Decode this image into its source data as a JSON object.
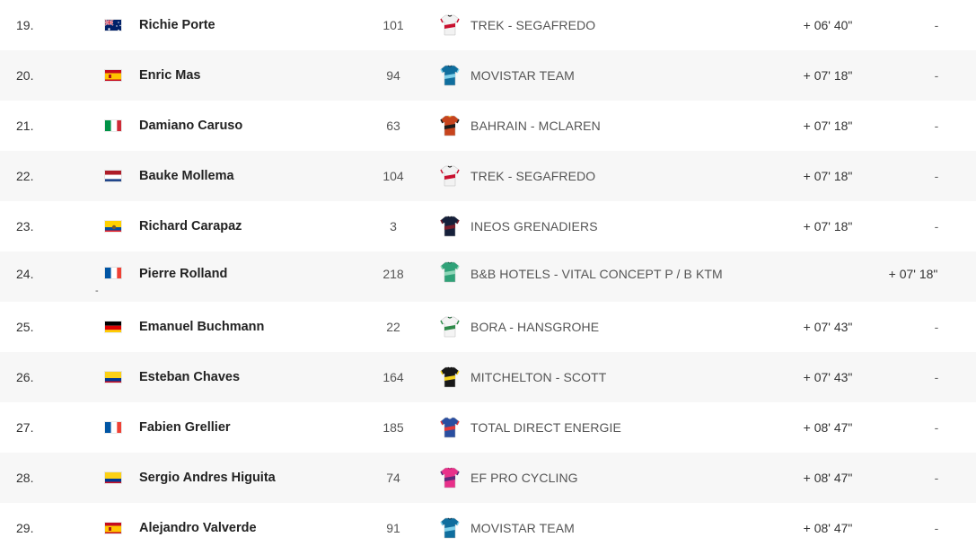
{
  "rows": [
    {
      "rank": "19.",
      "rider": "Richie Porte",
      "bib": "101",
      "team": "TREK - SEGAFREDO",
      "time": "+ 06' 40\"",
      "gap": "-",
      "flag": "australia",
      "jersey": "trek",
      "alt": false
    },
    {
      "rank": "20.",
      "rider": "Enric Mas",
      "bib": "94",
      "team": "MOVISTAR TEAM",
      "time": "+ 07' 18\"",
      "gap": "-",
      "flag": "spain",
      "jersey": "movistar",
      "alt": true
    },
    {
      "rank": "21.",
      "rider": "Damiano Caruso",
      "bib": "63",
      "team": "BAHRAIN - MCLAREN",
      "time": "+ 07' 18\"",
      "gap": "-",
      "flag": "italy",
      "jersey": "bahrain",
      "alt": false
    },
    {
      "rank": "22.",
      "rider": "Bauke Mollema",
      "bib": "104",
      "team": "TREK - SEGAFREDO",
      "time": "+ 07' 18\"",
      "gap": "-",
      "flag": "netherlands",
      "jersey": "trek",
      "alt": true
    },
    {
      "rank": "23.",
      "rider": "Richard Carapaz",
      "bib": "3",
      "team": "INEOS GRENADIERS",
      "time": "+ 07' 18\"",
      "gap": "-",
      "flag": "ecuador",
      "jersey": "ineos",
      "alt": false
    },
    {
      "rank": "24.",
      "rider": "Pierre Rolland",
      "bib": "218",
      "team": "B&B HOTELS - VITAL CONCEPT P / B KTM",
      "time": "",
      "gap": "+ 07' 18\"",
      "flag": "france",
      "jersey": "bbhotels",
      "alt": true,
      "stray": "-"
    },
    {
      "rank": "25.",
      "rider": "Emanuel Buchmann",
      "bib": "22",
      "team": "BORA - HANSGROHE",
      "time": "+ 07' 43\"",
      "gap": "-",
      "flag": "germany",
      "jersey": "bora",
      "alt": false
    },
    {
      "rank": "26.",
      "rider": "Esteban Chaves",
      "bib": "164",
      "team": "MITCHELTON - SCOTT",
      "time": "+ 07' 43\"",
      "gap": "-",
      "flag": "colombia",
      "jersey": "mitchelton",
      "alt": true
    },
    {
      "rank": "27.",
      "rider": "Fabien Grellier",
      "bib": "185",
      "team": "TOTAL DIRECT ENERGIE",
      "time": "+ 08' 47\"",
      "gap": "-",
      "flag": "france",
      "jersey": "total",
      "alt": false
    },
    {
      "rank": "28.",
      "rider": "Sergio Andres Higuita",
      "bib": "74",
      "team": "EF PRO CYCLING",
      "time": "+ 08' 47\"",
      "gap": "-",
      "flag": "colombia",
      "jersey": "ef",
      "alt": true
    },
    {
      "rank": "29.",
      "rider": "Alejandro Valverde",
      "bib": "91",
      "team": "MOVISTAR TEAM",
      "time": "+ 08' 47\"",
      "gap": "-",
      "flag": "spain",
      "jersey": "movistar",
      "alt": false
    }
  ],
  "jersey_colors": {
    "trek": {
      "body": "#f2f2f2",
      "accent": "#c8102e",
      "collar": "#1a1a1a"
    },
    "movistar": {
      "body": "#0f6e9e",
      "accent": "#7fd0ea",
      "collar": "#0b3b57"
    },
    "bahrain": {
      "body": "#c7441d",
      "accent": "#1b1b1b",
      "collar": "#e8a33d"
    },
    "ineos": {
      "body": "#16203a",
      "accent": "#7a1e2c",
      "collar": "#0c1222"
    },
    "bbhotels": {
      "body": "#2fa278",
      "accent": "#8fd6b8",
      "collar": "#1b6d50"
    },
    "bora": {
      "body": "#f4f4f4",
      "accent": "#2f8a4a",
      "collar": "#1f5f34"
    },
    "mitchelton": {
      "body": "#181818",
      "accent": "#f5d21c",
      "collar": "#0a0a0a"
    },
    "total": {
      "body": "#2a4ea0",
      "accent": "#e23a3a",
      "collar": "#f2f2f2"
    },
    "ef": {
      "body": "#e8308a",
      "accent": "#5a2a7a",
      "collar": "#b41f6c"
    }
  }
}
